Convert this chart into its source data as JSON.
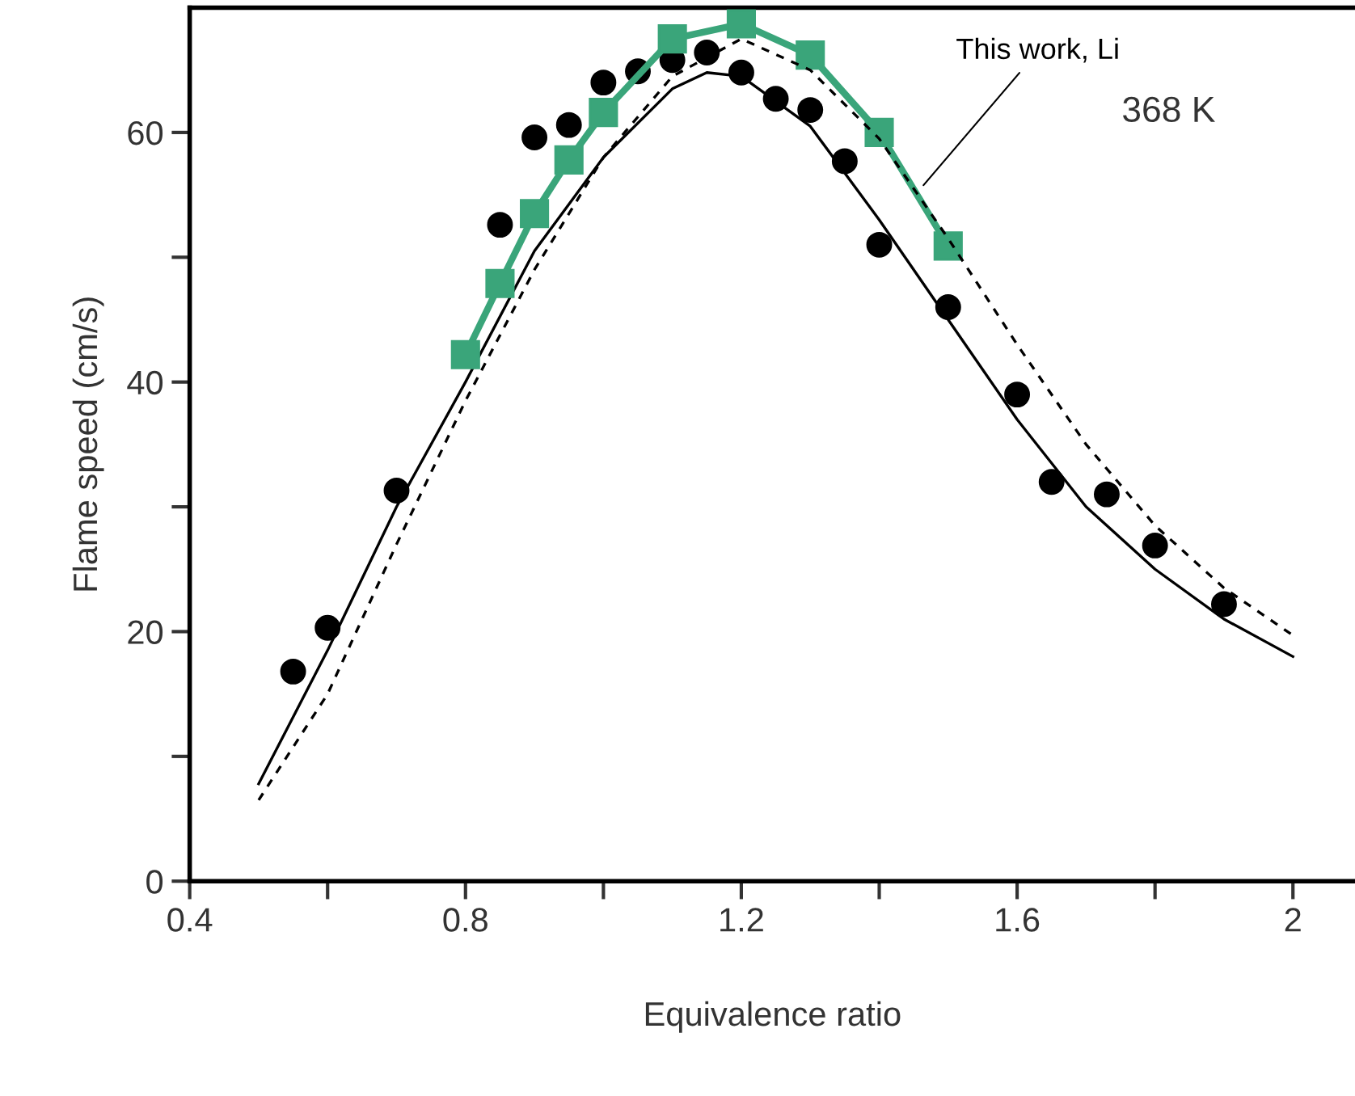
{
  "chart_data": {
    "type": "line",
    "xlabel": "Equivalence ratio",
    "ylabel": "Flame speed (cm/s)",
    "xlim": [
      0.4,
      2.09
    ],
    "ylim": [
      0,
      70
    ],
    "xticks": [
      0.4,
      {
        "value": 0.6,
        "label": null
      },
      0.8,
      {
        "value": 1.0,
        "label": null
      },
      1.2,
      {
        "value": 1.4,
        "label": null
      },
      1.6,
      {
        "value": 1.8,
        "label": null
      },
      2
    ],
    "yticks": [
      0,
      {
        "value": 10,
        "label": null
      },
      20,
      {
        "value": 30,
        "label": null
      },
      40,
      {
        "value": 50,
        "label": null
      },
      60
    ],
    "grid": false,
    "legend": false,
    "annotations": [
      {
        "text": "This work, Li",
        "x": 1.46,
        "y": 55.5
      },
      "368 K"
    ],
    "series": [
      {
        "type": "scatter",
        "marker": "circle",
        "color": "#000000",
        "x": [
          0.55,
          0.6,
          0.7,
          0.85,
          0.9,
          0.95,
          1.0,
          1.05,
          1.1,
          1.15,
          1.2,
          1.25,
          1.3,
          1.35,
          1.4,
          1.5,
          1.6,
          1.65,
          1.73,
          1.8,
          1.9
        ],
        "values": [
          16.8,
          20.3,
          31.3,
          52.6,
          59.6,
          60.6,
          64.0,
          64.9,
          65.8,
          66.4,
          64.8,
          62.7,
          61.8,
          57.7,
          51.0,
          46,
          39.0,
          32,
          31,
          26.9,
          22.2
        ]
      },
      {
        "type": "line",
        "marker": "none",
        "line_style": "solid",
        "color": "#000000",
        "x": [
          0.5,
          0.6,
          0.7,
          0.8,
          0.9,
          1.0,
          1.1,
          1.15,
          1.2,
          1.3,
          1.4,
          1.5,
          1.6,
          1.7,
          1.8,
          1.9,
          2.0
        ],
        "values": [
          7.8,
          18.5,
          30,
          40,
          50.5,
          58,
          63.5,
          64.8,
          64.5,
          60.5,
          53,
          45,
          37,
          30,
          25,
          21,
          18
        ]
      },
      {
        "type": "line",
        "marker": "none",
        "line_style": "dashed",
        "color": "#000000",
        "x": [
          0.5,
          0.6,
          0.7,
          0.8,
          0.9,
          1.0,
          1.1,
          1.2,
          1.3,
          1.4,
          1.5,
          1.6,
          1.7,
          1.8,
          1.9,
          2.0
        ],
        "values": [
          6.5,
          15,
          27,
          38.5,
          49,
          58,
          64.5,
          67.5,
          65,
          59.5,
          51.5,
          43,
          35,
          28.5,
          23.5,
          19.7
        ]
      },
      {
        "marker": "square",
        "line_style": "solid",
        "color": "#3aa57a",
        "x": [
          0.8,
          0.85,
          0.9,
          0.95,
          1.0,
          1.1,
          1.2,
          1.3,
          1.4,
          1.5
        ],
        "values": [
          42.2,
          47.9,
          53.5,
          57.8,
          61.6,
          67.5,
          68.7,
          66.2,
          60,
          50.9
        ]
      }
    ]
  }
}
